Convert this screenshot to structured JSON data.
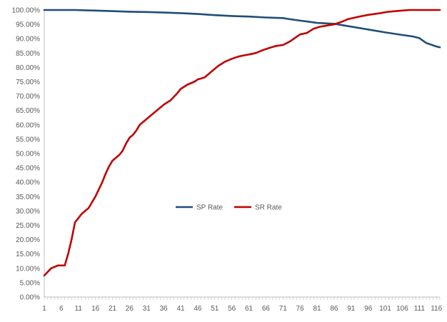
{
  "chart_data": {
    "type": "line",
    "title": "",
    "xlabel": "",
    "ylabel": "",
    "ylim": [
      0,
      100
    ],
    "yticks": [
      "0.00%",
      "5.00%",
      "10.00%",
      "15.00%",
      "20.00%",
      "25.00%",
      "30.00%",
      "35.00%",
      "40.00%",
      "45.00%",
      "50.00%",
      "55.00%",
      "60.00%",
      "65.00%",
      "70.00%",
      "75.00%",
      "80.00%",
      "85.00%",
      "90.00%",
      "95.00%",
      "100.00%"
    ],
    "xlim": [
      1,
      117
    ],
    "xticks": [
      "1",
      "6",
      "11",
      "16",
      "21",
      "26",
      "31",
      "36",
      "41",
      "46",
      "51",
      "56",
      "61",
      "66",
      "71",
      "76",
      "81",
      "86",
      "91",
      "96",
      "101",
      "106",
      "111",
      "116"
    ],
    "grid": false,
    "legend": "center",
    "series": [
      {
        "name": "SP Rate",
        "color": "#1F4E79",
        "points": [
          [
            1,
            100
          ],
          [
            10,
            100
          ],
          [
            16,
            99.8
          ],
          [
            21,
            99.6
          ],
          [
            26,
            99.4
          ],
          [
            31,
            99.3
          ],
          [
            36,
            99.1
          ],
          [
            41,
            98.9
          ],
          [
            46,
            98.6
          ],
          [
            51,
            98.2
          ],
          [
            56,
            97.9
          ],
          [
            61,
            97.7
          ],
          [
            66,
            97.4
          ],
          [
            71,
            97.2
          ],
          [
            73,
            96.8
          ],
          [
            76,
            96.3
          ],
          [
            78,
            96
          ],
          [
            81,
            95.5
          ],
          [
            86,
            95.2
          ],
          [
            91,
            94.2
          ],
          [
            96,
            93.2
          ],
          [
            101,
            92.2
          ],
          [
            106,
            91.3
          ],
          [
            109,
            90.8
          ],
          [
            111,
            90.2
          ],
          [
            113,
            88.5
          ],
          [
            116,
            87.3
          ],
          [
            117,
            87
          ]
        ]
      },
      {
        "name": "SR Rate",
        "color": "#C00000",
        "points": [
          [
            1,
            7.5
          ],
          [
            3,
            10
          ],
          [
            5,
            11
          ],
          [
            7,
            11
          ],
          [
            8,
            15
          ],
          [
            9,
            20
          ],
          [
            10,
            26
          ],
          [
            11,
            27.5
          ],
          [
            12,
            29
          ],
          [
            14,
            31
          ],
          [
            16,
            35
          ],
          [
            18,
            40
          ],
          [
            19,
            43
          ],
          [
            20,
            45.5
          ],
          [
            21,
            47.5
          ],
          [
            22,
            48.5
          ],
          [
            23,
            49.5
          ],
          [
            24,
            51
          ],
          [
            25,
            53.5
          ],
          [
            26,
            55.5
          ],
          [
            27,
            56.5
          ],
          [
            28,
            58
          ],
          [
            29,
            60
          ],
          [
            31,
            62
          ],
          [
            33,
            64
          ],
          [
            35,
            66
          ],
          [
            36,
            67
          ],
          [
            38,
            68.5
          ],
          [
            40,
            71
          ],
          [
            41,
            72.5
          ],
          [
            43,
            74
          ],
          [
            45,
            75
          ],
          [
            46,
            75.8
          ],
          [
            48,
            76.5
          ],
          [
            50,
            78.5
          ],
          [
            52,
            80.5
          ],
          [
            54,
            82
          ],
          [
            56,
            83
          ],
          [
            58,
            83.8
          ],
          [
            60,
            84.3
          ],
          [
            61,
            84.5
          ],
          [
            63,
            85
          ],
          [
            65,
            86
          ],
          [
            67,
            86.8
          ],
          [
            69,
            87.5
          ],
          [
            71,
            87.8
          ],
          [
            73,
            89
          ],
          [
            76,
            91.5
          ],
          [
            78,
            92
          ],
          [
            80,
            93.5
          ],
          [
            82,
            94.2
          ],
          [
            84,
            94.6
          ],
          [
            86,
            95
          ],
          [
            88,
            95.8
          ],
          [
            90,
            96.8
          ],
          [
            93,
            97.6
          ],
          [
            96,
            98.3
          ],
          [
            99,
            98.8
          ],
          [
            102,
            99.4
          ],
          [
            105,
            99.7
          ],
          [
            108,
            100
          ],
          [
            117,
            100
          ]
        ]
      }
    ]
  }
}
